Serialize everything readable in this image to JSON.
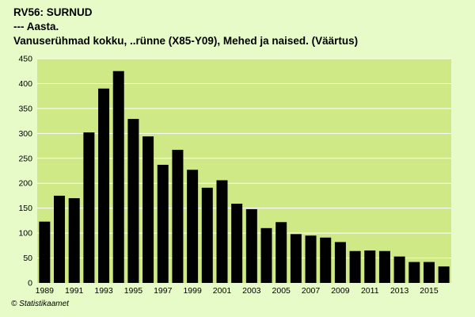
{
  "title_lines": [
    "RV56: SURNUD",
    "--- Aasta.",
    "Vanuserühmad kokku, ..rünne (X85-Y09), Mehed ja naised. (Väärtus)"
  ],
  "credit": "© Statistikaamet",
  "colors": {
    "background": "#e6fbc8",
    "plot_background": "#cfe986",
    "bar": "#000000",
    "grid": "#ffffff"
  },
  "chart_data": {
    "type": "bar",
    "title": "RV56: SURNUD",
    "xlabel": "",
    "ylabel": "",
    "ylim": [
      0,
      450
    ],
    "yticks": [
      0,
      50,
      100,
      150,
      200,
      250,
      300,
      350,
      400,
      450
    ],
    "grid": true,
    "legend": "none",
    "categories": [
      "1989",
      "1990",
      "1991",
      "1992",
      "1993",
      "1994",
      "1995",
      "1996",
      "1997",
      "1998",
      "1999",
      "2000",
      "2001",
      "2002",
      "2003",
      "2004",
      "2005",
      "2006",
      "2007",
      "2008",
      "2009",
      "2010",
      "2011",
      "2012",
      "2013",
      "2014",
      "2015",
      "2016"
    ],
    "x_tick_labels": [
      "1989",
      "1991",
      "1993",
      "1995",
      "1997",
      "1999",
      "2001",
      "2003",
      "2005",
      "2007",
      "2009",
      "2011",
      "2013",
      "2015"
    ],
    "values": [
      123,
      175,
      170,
      302,
      390,
      425,
      329,
      294,
      237,
      267,
      227,
      191,
      206,
      159,
      148,
      110,
      122,
      98,
      95,
      91,
      82,
      64,
      65,
      64,
      53,
      42,
      42,
      33
    ]
  }
}
